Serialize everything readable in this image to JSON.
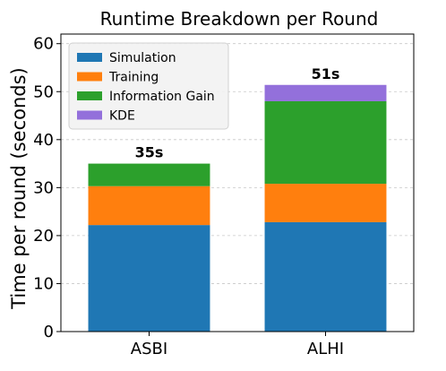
{
  "chart_data": {
    "type": "bar",
    "stacked": true,
    "title": "Runtime Breakdown per Round",
    "xlabel": "",
    "ylabel": "Time per round (seconds)",
    "categories": [
      "ASBI",
      "ALHI"
    ],
    "series": [
      {
        "name": "Simulation",
        "color": "#1f77b4",
        "values": [
          22.2,
          22.8
        ]
      },
      {
        "name": "Training",
        "color": "#ff7f0e",
        "values": [
          8.1,
          8.0
        ]
      },
      {
        "name": "Information Gain",
        "color": "#2ca02c",
        "values": [
          4.7,
          17.2
        ]
      },
      {
        "name": "KDE",
        "color": "#9370db",
        "values": [
          0,
          3.4
        ]
      }
    ],
    "totals": [
      "35s",
      "51s"
    ],
    "ylim": [
      0,
      62
    ],
    "yticks": [
      "0",
      "10",
      "20",
      "30",
      "40",
      "50",
      "60"
    ],
    "grid": "y-dashed",
    "legend_position": "top-left"
  }
}
